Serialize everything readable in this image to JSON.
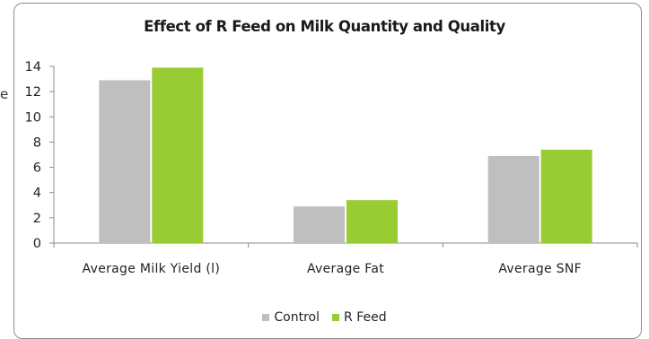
{
  "chart_data": {
    "type": "bar",
    "title": "Effect of R Feed on Milk Quantity and Quality",
    "categories": [
      "Average Milk Yield (l)",
      "Average Fat",
      "Average SNF"
    ],
    "series": [
      {
        "name": "Control",
        "values": [
          12.9,
          2.9,
          6.9
        ],
        "color": "#bfbfbf"
      },
      {
        "name": "R Feed",
        "values": [
          13.9,
          3.4,
          7.4
        ],
        "color": "#99cc33"
      }
    ],
    "yticks": [
      "0",
      "2",
      "4",
      "6",
      "8",
      "10",
      "12",
      "14"
    ],
    "ylim": [
      0,
      14
    ],
    "grid": false,
    "legend_position": "bottom"
  },
  "stray_text": "e"
}
